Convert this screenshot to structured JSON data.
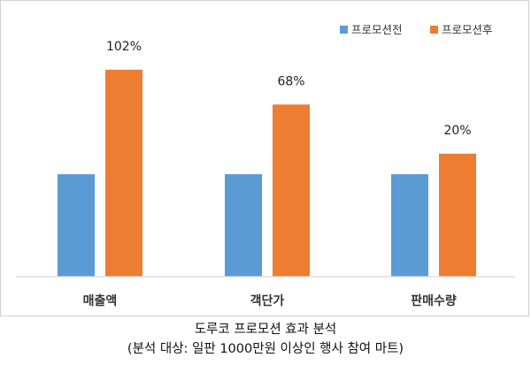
{
  "chart_data": {
    "type": "bar",
    "categories": [
      "매출액",
      "객단가",
      "판매수량"
    ],
    "series": [
      {
        "name": "프로모션전",
        "color": "#5b9bd5",
        "values": [
          1.0,
          1.0,
          1.0
        ]
      },
      {
        "name": "프로모션후",
        "color": "#ed7d31",
        "values": [
          2.02,
          1.68,
          1.2
        ]
      }
    ],
    "annotations": [
      "102%",
      "68%",
      "20%"
    ],
    "ylim": [
      0,
      2.2
    ],
    "gridlines": false,
    "legend_position": "top-right"
  },
  "caption": {
    "line1": "도루코 프로모션 효과 분석",
    "line2": "(분석 대상: 일판 1000만원 이상인 행사 참여 마트)"
  }
}
